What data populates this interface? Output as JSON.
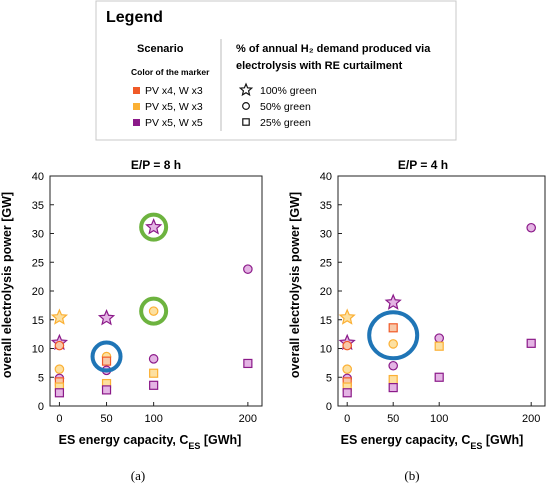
{
  "legend": {
    "title": "Legend",
    "scenario_heading": "Scenario",
    "marker_color_heading": "Color of the marker",
    "shape_heading_line1": "% of annual H₂ demand produced via",
    "shape_heading_line2": "electrolysis with RE curtailment",
    "scenarios": [
      {
        "label": "PV x4, W x3",
        "color": "#f05a28"
      },
      {
        "label": "PV x5, W x3",
        "color": "#fbb034"
      },
      {
        "label": "PV x5, W x5",
        "color": "#8b1a89"
      }
    ],
    "shapes": [
      {
        "label": "100% green",
        "shape": "star-icon"
      },
      {
        "label": "50% green",
        "shape": "circle-icon"
      },
      {
        "label": "25% green",
        "shape": "square-icon"
      }
    ]
  },
  "colors": {
    "highlight_green": "#6db33f",
    "highlight_blue": "#1f75b6",
    "fill_orange": "#f8c8a8",
    "fill_yellow": "#fde0a0",
    "fill_purple": "#e4b4e4"
  },
  "chart_data": [
    {
      "type": "scatter",
      "title": "E/P = 8 h",
      "xlabel": "ES energy capacity, C_ES [GWh]",
      "ylabel": "overall electrolysis power [GW]",
      "panel_label": "(a)",
      "xlim": [
        -10,
        215
      ],
      "ylim": [
        0,
        40
      ],
      "xticks": [
        0,
        50,
        100,
        200
      ],
      "yticks": [
        0,
        5,
        10,
        15,
        20,
        25,
        30,
        35,
        40
      ],
      "grid": false,
      "points": [
        {
          "x": 0,
          "y": 15.4,
          "series": "PV x5, W x3",
          "shape": "star"
        },
        {
          "x": 0,
          "y": 11.0,
          "series": "PV x5, W x5",
          "shape": "star"
        },
        {
          "x": 0,
          "y": 10.5,
          "series": "PV x4, W x3",
          "shape": "circle"
        },
        {
          "x": 0,
          "y": 6.4,
          "series": "PV x5, W x3",
          "shape": "circle"
        },
        {
          "x": 0,
          "y": 4.8,
          "series": "PV x5, W x5",
          "shape": "circle"
        },
        {
          "x": 0,
          "y": 4.2,
          "series": "PV x4, W x3",
          "shape": "square"
        },
        {
          "x": 0,
          "y": 3.3,
          "series": "PV x5, W x3",
          "shape": "square"
        },
        {
          "x": 0,
          "y": 2.3,
          "series": "PV x5, W x5",
          "shape": "square"
        },
        {
          "x": 50,
          "y": 15.3,
          "series": "PV x5, W x5",
          "shape": "star"
        },
        {
          "x": 50,
          "y": 8.6,
          "series": "PV x5, W x3",
          "shape": "circle"
        },
        {
          "x": 50,
          "y": 7.8,
          "series": "PV x4, W x3",
          "shape": "square"
        },
        {
          "x": 50,
          "y": 6.2,
          "series": "PV x5, W x5",
          "shape": "circle"
        },
        {
          "x": 50,
          "y": 3.9,
          "series": "PV x5, W x3",
          "shape": "square"
        },
        {
          "x": 50,
          "y": 2.8,
          "series": "PV x5, W x5",
          "shape": "square"
        },
        {
          "x": 100,
          "y": 31.1,
          "series": "PV x5, W x5",
          "shape": "star"
        },
        {
          "x": 100,
          "y": 16.5,
          "series": "PV x5, W x3",
          "shape": "circle"
        },
        {
          "x": 100,
          "y": 8.2,
          "series": "PV x5, W x5",
          "shape": "circle"
        },
        {
          "x": 100,
          "y": 5.7,
          "series": "PV x5, W x3",
          "shape": "square"
        },
        {
          "x": 100,
          "y": 3.6,
          "series": "PV x5, W x5",
          "shape": "square"
        },
        {
          "x": 200,
          "y": 23.8,
          "series": "PV x5, W x5",
          "shape": "circle"
        },
        {
          "x": 200,
          "y": 7.4,
          "series": "PV x5, W x5",
          "shape": "square"
        }
      ],
      "highlights": [
        {
          "x": 100,
          "y": 31.1,
          "color": "green"
        },
        {
          "x": 100,
          "y": 16.5,
          "color": "green"
        },
        {
          "x": 50,
          "y": 8.6,
          "color": "blue"
        }
      ]
    },
    {
      "type": "scatter",
      "title": "E/P = 4 h",
      "xlabel": "ES energy capacity, C_ES [GWh]",
      "ylabel": "overall electrolysis power [GW]",
      "panel_label": "(b)",
      "xlim": [
        -10,
        215
      ],
      "ylim": [
        0,
        40
      ],
      "xticks": [
        0,
        50,
        100,
        200
      ],
      "yticks": [
        0,
        5,
        10,
        15,
        20,
        25,
        30,
        35,
        40
      ],
      "grid": false,
      "points": [
        {
          "x": 0,
          "y": 15.4,
          "series": "PV x5, W x3",
          "shape": "star"
        },
        {
          "x": 0,
          "y": 11.0,
          "series": "PV x5, W x5",
          "shape": "star"
        },
        {
          "x": 0,
          "y": 10.5,
          "series": "PV x4, W x3",
          "shape": "circle"
        },
        {
          "x": 0,
          "y": 6.4,
          "series": "PV x5, W x3",
          "shape": "circle"
        },
        {
          "x": 0,
          "y": 4.8,
          "series": "PV x5, W x5",
          "shape": "circle"
        },
        {
          "x": 0,
          "y": 4.2,
          "series": "PV x4, W x3",
          "shape": "square"
        },
        {
          "x": 0,
          "y": 3.3,
          "series": "PV x5, W x3",
          "shape": "square"
        },
        {
          "x": 0,
          "y": 2.3,
          "series": "PV x5, W x5",
          "shape": "square"
        },
        {
          "x": 50,
          "y": 18.0,
          "series": "PV x5, W x5",
          "shape": "star"
        },
        {
          "x": 50,
          "y": 13.6,
          "series": "PV x4, W x3",
          "shape": "square"
        },
        {
          "x": 50,
          "y": 10.8,
          "series": "PV x5, W x3",
          "shape": "circle"
        },
        {
          "x": 50,
          "y": 7.0,
          "series": "PV x5, W x5",
          "shape": "circle"
        },
        {
          "x": 50,
          "y": 4.6,
          "series": "PV x5, W x3",
          "shape": "square"
        },
        {
          "x": 50,
          "y": 3.2,
          "series": "PV x5, W x5",
          "shape": "square"
        },
        {
          "x": 100,
          "y": 11.8,
          "series": "PV x5, W x5",
          "shape": "circle"
        },
        {
          "x": 100,
          "y": 10.4,
          "series": "PV x5, W x3",
          "shape": "square"
        },
        {
          "x": 100,
          "y": 5.0,
          "series": "PV x5, W x5",
          "shape": "square"
        },
        {
          "x": 200,
          "y": 31.0,
          "series": "PV x5, W x5",
          "shape": "circle"
        },
        {
          "x": 200,
          "y": 10.9,
          "series": "PV x5, W x5",
          "shape": "square"
        }
      ],
      "highlights": [
        {
          "x": 50,
          "y": 12.3,
          "color": "blue"
        }
      ]
    }
  ]
}
